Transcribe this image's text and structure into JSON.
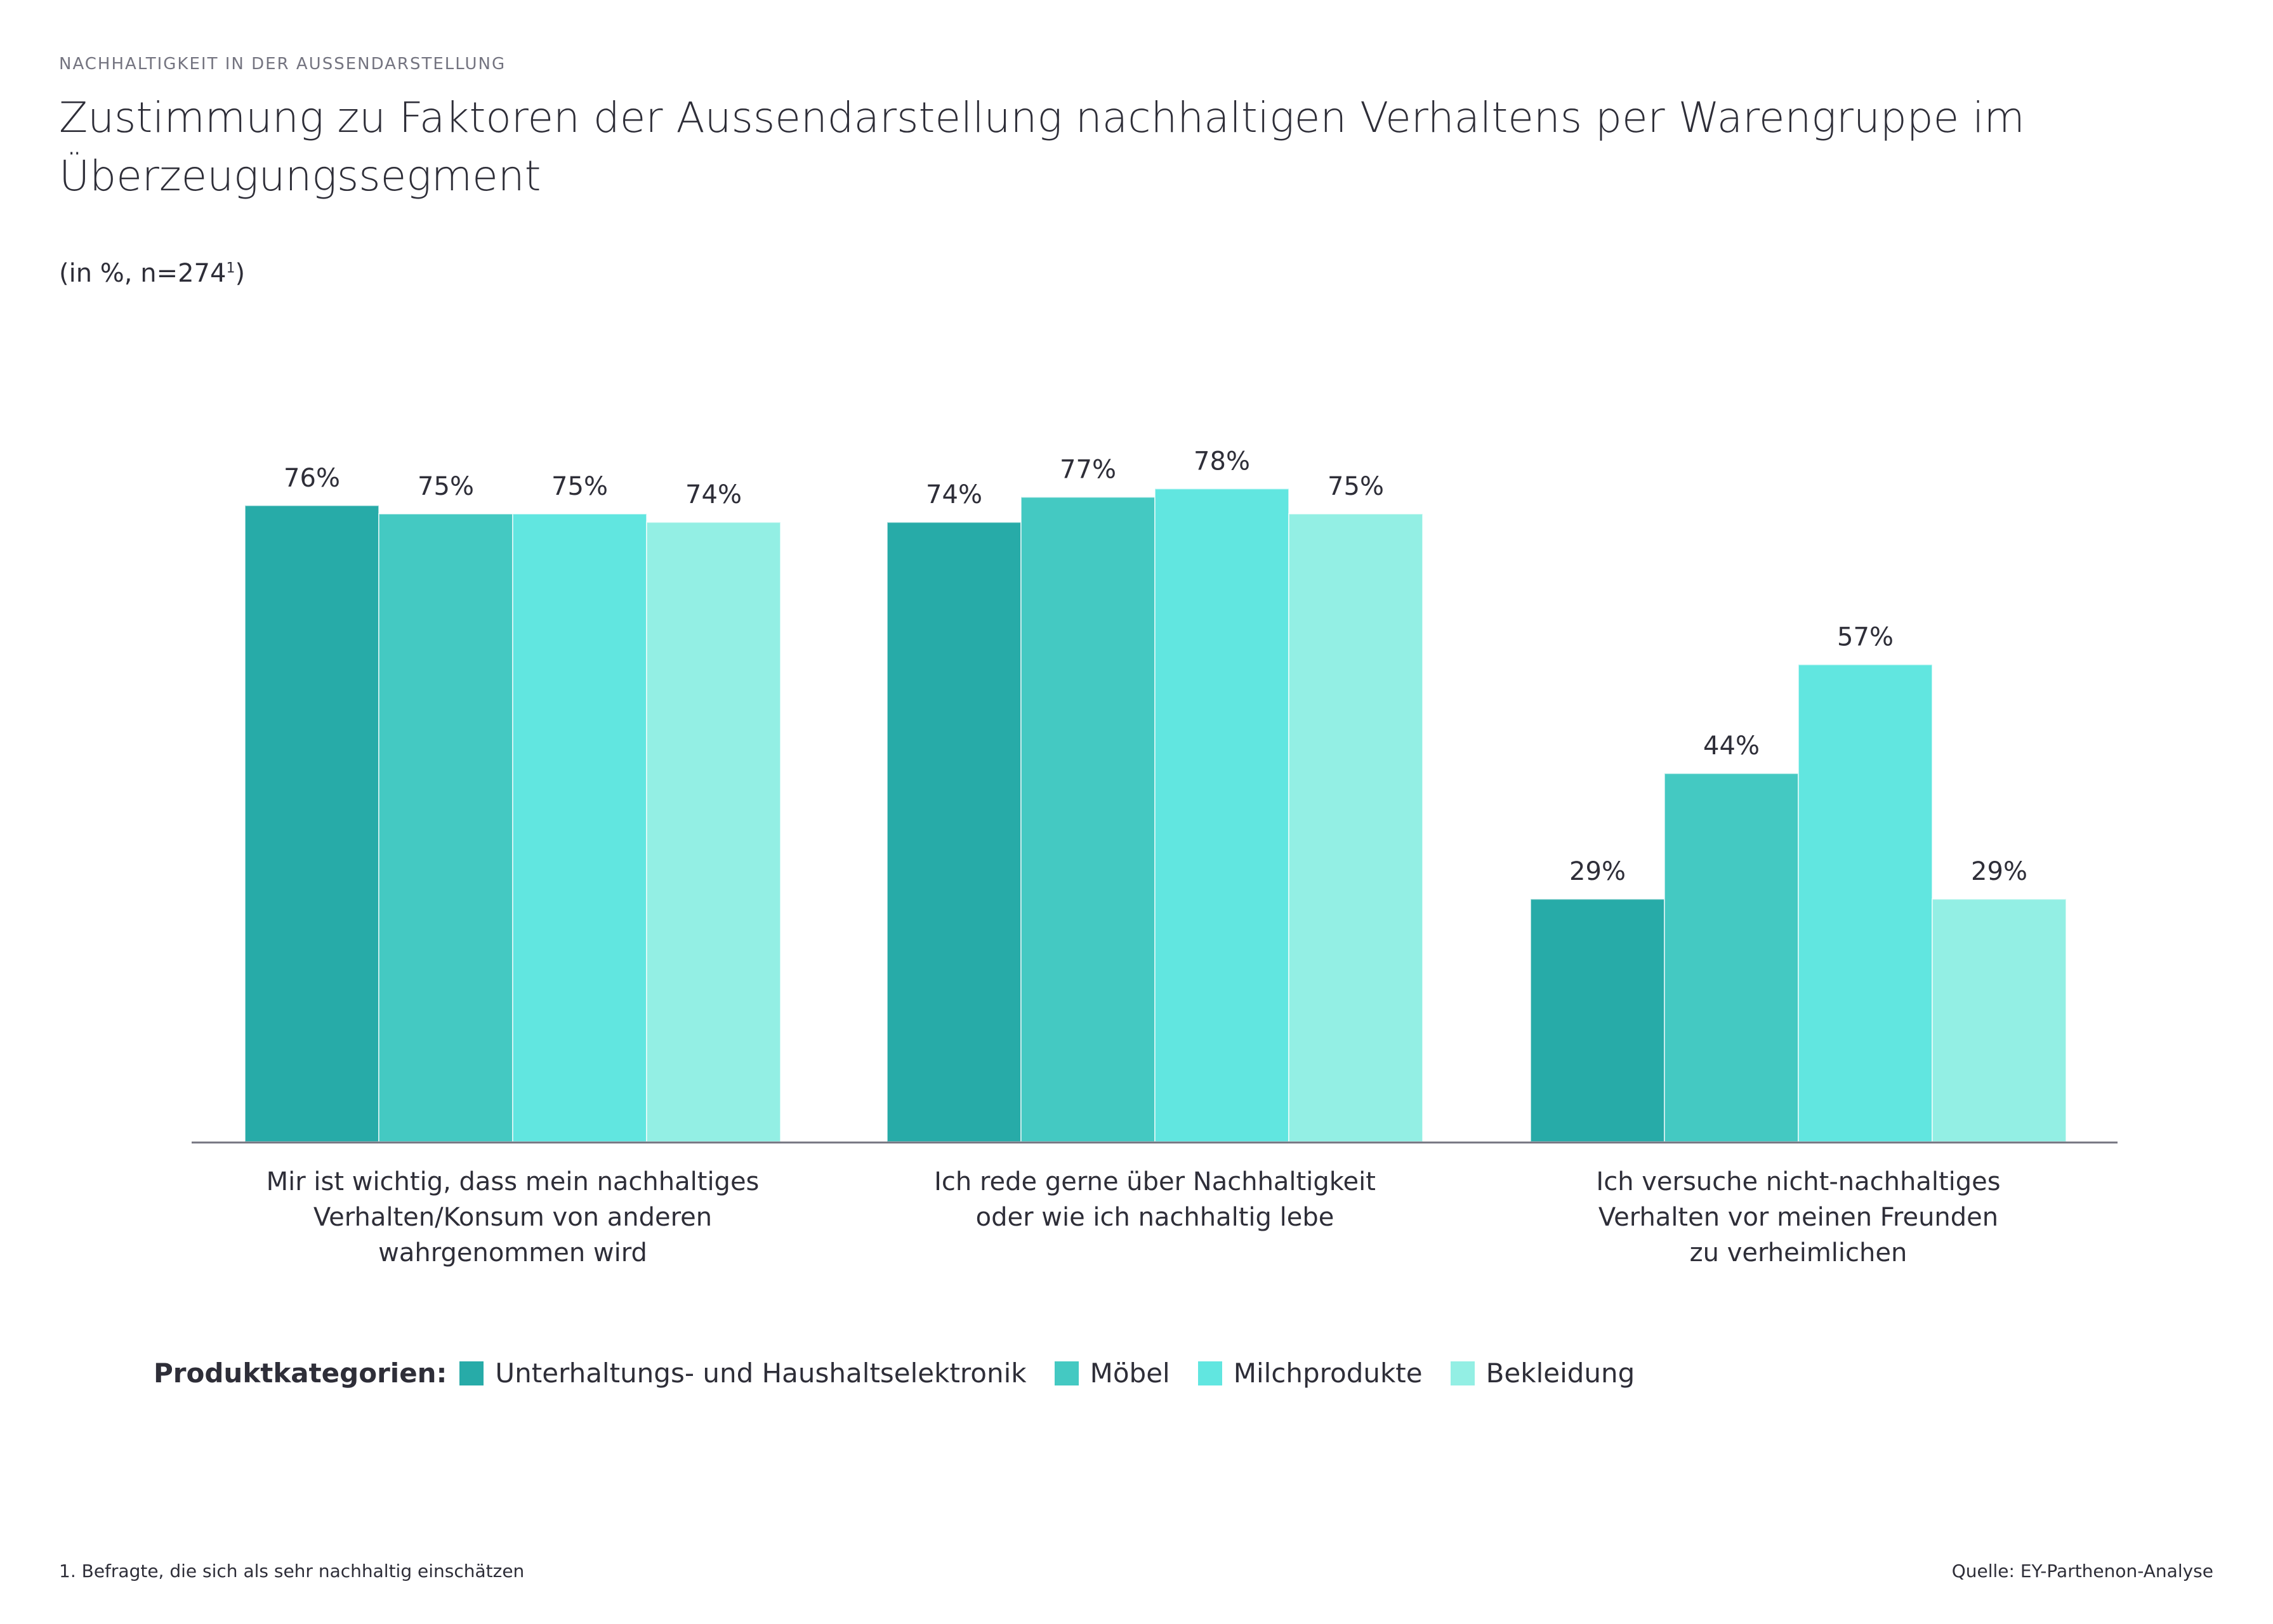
{
  "header": {
    "kicker": "NACHHALTIGKEIT IN DER AUSSENDARSTELLUNG",
    "title": "Zustimmung zu Faktoren der Aussendarstellung nachhaltigen Verhaltens per Warengruppe im Überzeugungssegment",
    "subtitle_main": "(in %, n=274",
    "subtitle_sup": "1",
    "subtitle_end": ")"
  },
  "legend": {
    "title": "Produktkategorien:"
  },
  "footer": {
    "footnote": "1. Befragte, die sich als sehr nachhaltig einschätzen",
    "source": "Quelle: EY-Parthenon-Analyse"
  },
  "chart_data": {
    "type": "bar",
    "title": "Zustimmung zu Faktoren der Aussendarstellung nachhaltigen Verhaltens per Warengruppe im Überzeugungssegment",
    "xlabel": "",
    "ylabel": "",
    "unit": "%",
    "ylim": [
      0,
      100
    ],
    "grid": false,
    "legend_position": "bottom",
    "categories": [
      "Mir ist wichtig, dass mein nachhaltiges Verhalten/Konsum von anderen wahrgenommen wird",
      "Ich rede gerne über Nachhaltigkeit oder wie ich nachhaltig lebe",
      "Ich versuche nicht-nachhaltiges Verhalten vor meinen Freunden zu verheimlichen"
    ],
    "category_lines": [
      [
        "Mir ist wichtig, dass mein nachhaltiges",
        "Verhalten/Konsum von anderen",
        "wahrgenommen wird"
      ],
      [
        "Ich rede gerne über Nachhaltigkeit",
        "oder wie ich nachhaltig lebe"
      ],
      [
        "Ich versuche nicht-nachhaltiges",
        "Verhalten vor meinen Freunden",
        "zu verheimlichen"
      ]
    ],
    "series": [
      {
        "name": "Unterhaltungs- und Haushaltselektronik",
        "color": "#27ABA8",
        "values": [
          76,
          74,
          29
        ]
      },
      {
        "name": "Möbel",
        "color": "#44C9C2",
        "values": [
          75,
          77,
          44
        ]
      },
      {
        "name": "Milchprodukte",
        "color": "#61E6E0",
        "values": [
          75,
          78,
          57
        ]
      },
      {
        "name": "Bekleidung",
        "color": "#93EFE4",
        "values": [
          74,
          75,
          29
        ]
      }
    ],
    "data_labels": [
      [
        "76%",
        "75%",
        "75%",
        "74%"
      ],
      [
        "74%",
        "77%",
        "78%",
        "75%"
      ],
      [
        "29%",
        "44%",
        "57%",
        "29%"
      ]
    ]
  }
}
